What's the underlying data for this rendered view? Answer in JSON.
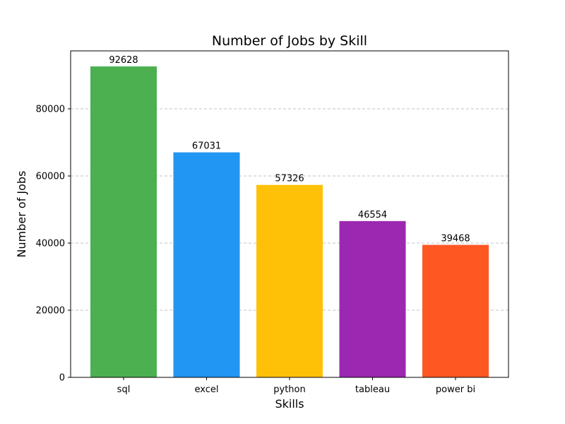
{
  "chart_data": {
    "type": "bar",
    "title": "Number of Jobs by Skill",
    "xlabel": "Skills",
    "ylabel": "Number of Jobs",
    "categories": [
      "sql",
      "excel",
      "python",
      "tableau",
      "power bi"
    ],
    "values": [
      92628,
      67031,
      57326,
      46554,
      39468
    ],
    "colors": [
      "#4caf50",
      "#2196f3",
      "#ffc107",
      "#9c27b0",
      "#ff5722"
    ],
    "ylim": [
      0,
      97259
    ],
    "yticks": [
      0,
      20000,
      40000,
      60000,
      80000
    ],
    "grid": "y-dashed",
    "data_labels": true
  }
}
